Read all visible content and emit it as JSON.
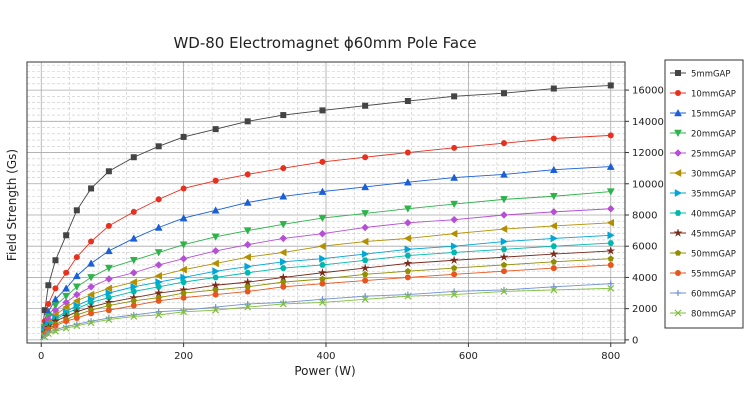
{
  "chart_data": {
    "type": "line",
    "title": "WD-80 Electromagnet ϕ60mm Pole Face",
    "xlabel": "Power (W)",
    "ylabel": "Field Strength (Gs)",
    "xlim": [
      -20,
      820
    ],
    "ylim": [
      -200,
      17800
    ],
    "x_ticks": [
      0,
      200,
      400,
      600,
      800
    ],
    "y_ticks": [
      0,
      2000,
      4000,
      6000,
      8000,
      10000,
      12000,
      14000,
      16000
    ],
    "y_axis_side": "right",
    "grid": true,
    "legend_position": "right",
    "series": [
      {
        "name": "5mmGAP",
        "color": "#444444",
        "marker": "square",
        "x": [
          0,
          5,
          10,
          20,
          35,
          50,
          70,
          95,
          130,
          165,
          200,
          245,
          290,
          340,
          395,
          455,
          515,
          580,
          650,
          720,
          800
        ],
        "y": [
          0,
          1900,
          3500,
          5100,
          6700,
          8300,
          9700,
          10800,
          11700,
          12400,
          13000,
          13500,
          14000,
          14400,
          14700,
          15000,
          15300,
          15600,
          15800,
          16100,
          16300
        ]
      },
      {
        "name": "10mmGAP",
        "color": "#e8301f",
        "marker": "circle",
        "x": [
          0,
          5,
          10,
          20,
          35,
          50,
          70,
          95,
          130,
          165,
          200,
          245,
          290,
          340,
          395,
          455,
          515,
          580,
          650,
          720,
          800
        ],
        "y": [
          0,
          1200,
          2300,
          3300,
          4300,
          5300,
          6300,
          7300,
          8200,
          9000,
          9700,
          10200,
          10600,
          11000,
          11400,
          11700,
          12000,
          12300,
          12600,
          12900,
          13100
        ]
      },
      {
        "name": "15mmGAP",
        "color": "#1a5fd6",
        "marker": "triangle-up",
        "x": [
          0,
          5,
          10,
          20,
          35,
          50,
          70,
          95,
          130,
          165,
          200,
          245,
          290,
          340,
          395,
          455,
          515,
          580,
          650,
          720,
          800
        ],
        "y": [
          0,
          1000,
          1800,
          2600,
          3300,
          4100,
          4900,
          5700,
          6500,
          7200,
          7800,
          8300,
          8800,
          9200,
          9500,
          9800,
          10100,
          10400,
          10600,
          10900,
          11100
        ]
      },
      {
        "name": "20mmGAP",
        "color": "#2db34a",
        "marker": "triangle-down",
        "x": [
          0,
          5,
          10,
          20,
          35,
          50,
          70,
          95,
          130,
          165,
          200,
          245,
          290,
          340,
          395,
          455,
          515,
          580,
          650,
          720,
          800
        ],
        "y": [
          0,
          800,
          1500,
          2200,
          2800,
          3400,
          4000,
          4600,
          5100,
          5600,
          6100,
          6600,
          7000,
          7400,
          7800,
          8100,
          8400,
          8700,
          9000,
          9200,
          9500
        ]
      },
      {
        "name": "25mmGAP",
        "color": "#b64fd6",
        "marker": "diamond",
        "x": [
          0,
          5,
          10,
          20,
          35,
          50,
          70,
          95,
          130,
          165,
          200,
          245,
          290,
          340,
          395,
          455,
          515,
          580,
          650,
          720,
          800
        ],
        "y": [
          0,
          700,
          1300,
          1900,
          2400,
          2900,
          3400,
          3900,
          4300,
          4800,
          5200,
          5700,
          6100,
          6500,
          6800,
          7200,
          7500,
          7700,
          8000,
          8200,
          8400
        ]
      },
      {
        "name": "30mmGAP",
        "color": "#b38f00",
        "marker": "triangle-left",
        "x": [
          0,
          5,
          10,
          20,
          35,
          50,
          70,
          95,
          130,
          165,
          200,
          245,
          290,
          340,
          395,
          455,
          515,
          580,
          650,
          720,
          800
        ],
        "y": [
          0,
          600,
          1100,
          1600,
          2100,
          2500,
          2900,
          3300,
          3700,
          4100,
          4500,
          4900,
          5300,
          5600,
          6000,
          6300,
          6500,
          6800,
          7100,
          7300,
          7500
        ]
      },
      {
        "name": "35mmGAP",
        "color": "#00a6d6",
        "marker": "triangle-right",
        "x": [
          0,
          5,
          10,
          20,
          35,
          50,
          70,
          95,
          130,
          165,
          200,
          245,
          290,
          340,
          395,
          455,
          515,
          580,
          650,
          720,
          800
        ],
        "y": [
          0,
          550,
          1000,
          1400,
          1800,
          2200,
          2600,
          3000,
          3400,
          3700,
          4000,
          4400,
          4700,
          5000,
          5200,
          5500,
          5800,
          6000,
          6300,
          6500,
          6700
        ]
      },
      {
        "name": "40mmGAP",
        "color": "#00b8b0",
        "marker": "hexagon",
        "x": [
          0,
          5,
          10,
          20,
          35,
          50,
          70,
          95,
          130,
          165,
          200,
          245,
          290,
          340,
          395,
          455,
          515,
          580,
          650,
          720,
          800
        ],
        "y": [
          0,
          500,
          900,
          1300,
          1700,
          2000,
          2400,
          2700,
          3100,
          3400,
          3700,
          4000,
          4300,
          4600,
          4800,
          5100,
          5400,
          5600,
          5800,
          6000,
          6200
        ]
      },
      {
        "name": "45mmGAP",
        "color": "#7a2a1a",
        "marker": "star",
        "x": [
          0,
          5,
          10,
          20,
          35,
          50,
          70,
          95,
          130,
          165,
          200,
          245,
          290,
          340,
          395,
          455,
          515,
          580,
          650,
          720,
          800
        ],
        "y": [
          0,
          450,
          800,
          1200,
          1500,
          1800,
          2100,
          2400,
          2700,
          3000,
          3200,
          3500,
          3700,
          4000,
          4300,
          4600,
          4900,
          5100,
          5300,
          5500,
          5700
        ]
      },
      {
        "name": "50mmGAP",
        "color": "#8f8f00",
        "marker": "pentagon",
        "x": [
          0,
          5,
          10,
          20,
          35,
          50,
          70,
          95,
          130,
          165,
          200,
          245,
          290,
          340,
          395,
          455,
          515,
          580,
          650,
          720,
          800
        ],
        "y": [
          0,
          400,
          700,
          1000,
          1300,
          1600,
          1900,
          2200,
          2500,
          2700,
          3000,
          3200,
          3400,
          3700,
          3900,
          4200,
          4400,
          4600,
          4800,
          5000,
          5200
        ]
      },
      {
        "name": "55mmGAP",
        "color": "#e8561f",
        "marker": "circle",
        "x": [
          0,
          5,
          10,
          20,
          35,
          50,
          70,
          95,
          130,
          165,
          200,
          245,
          290,
          340,
          395,
          455,
          515,
          580,
          650,
          720,
          800
        ],
        "y": [
          0,
          350,
          600,
          900,
          1200,
          1400,
          1700,
          1900,
          2200,
          2500,
          2700,
          2900,
          3100,
          3400,
          3600,
          3800,
          4000,
          4200,
          4400,
          4600,
          4800
        ]
      },
      {
        "name": "60mmGAP",
        "color": "#6f8fd6",
        "marker": "plus",
        "x": [
          0,
          5,
          10,
          20,
          35,
          50,
          70,
          95,
          130,
          165,
          200,
          245,
          290,
          340,
          395,
          455,
          515,
          580,
          650,
          720,
          800
        ],
        "y": [
          0,
          250,
          450,
          650,
          850,
          1000,
          1200,
          1400,
          1600,
          1800,
          1900,
          2100,
          2300,
          2400,
          2600,
          2800,
          2900,
          3100,
          3200,
          3400,
          3600
        ]
      },
      {
        "name": "80mmGAP",
        "color": "#7fbf3f",
        "marker": "cross",
        "x": [
          0,
          5,
          10,
          20,
          35,
          50,
          70,
          95,
          130,
          165,
          200,
          245,
          290,
          340,
          395,
          455,
          515,
          580,
          650,
          720,
          800
        ],
        "y": [
          0,
          200,
          400,
          550,
          750,
          900,
          1100,
          1300,
          1500,
          1600,
          1800,
          1900,
          2100,
          2300,
          2400,
          2600,
          2800,
          2900,
          3100,
          3200,
          3300
        ]
      }
    ]
  }
}
